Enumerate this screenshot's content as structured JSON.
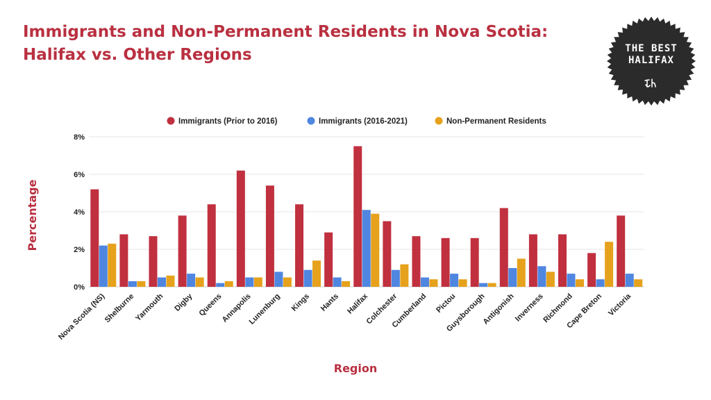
{
  "header": {
    "title_line1": "Immigrants and Non-Permanent Residents in Nova Scotia:",
    "title_line2": "Halifax vs. Other Regions"
  },
  "logo": {
    "line1": "THE BEST",
    "line2": "HALIFAX",
    "color": "#2b2b2b"
  },
  "chart_data": {
    "type": "bar",
    "title": "Immigrants and Non-Permanent Residents in Nova Scotia: Halifax vs. Other Regions",
    "xlabel": "Region",
    "ylabel": "Percentage",
    "ylim": [
      0,
      8
    ],
    "yticks": [
      0,
      2,
      4,
      6,
      8
    ],
    "ytick_suffix": "%",
    "grid": true,
    "legend_position": "top",
    "categories": [
      "Nova Scotia (NS)",
      "Shelburne",
      "Yarmouth",
      "Digby",
      "Queens",
      "Annapolis",
      "Lunenburg",
      "Kings",
      "Hants",
      "Halifax",
      "Colchester",
      "Cumberland",
      "Pictou",
      "Guysborough",
      "Antigonish",
      "Inverness",
      "Richmond",
      "Cape Breton",
      "Victoria"
    ],
    "series": [
      {
        "name": "Immigrants (Prior to 2016)",
        "color": "#c0303f",
        "values": [
          5.2,
          2.8,
          2.7,
          3.8,
          4.4,
          6.2,
          5.4,
          4.4,
          2.9,
          7.5,
          3.5,
          2.7,
          2.6,
          2.6,
          4.2,
          2.8,
          2.8,
          1.8,
          3.8
        ]
      },
      {
        "name": "Immigrants (2016-2021)",
        "color": "#4f86e0",
        "values": [
          2.2,
          0.3,
          0.5,
          0.7,
          0.2,
          0.5,
          0.8,
          0.9,
          0.5,
          4.1,
          0.9,
          0.5,
          0.7,
          0.2,
          1.0,
          1.1,
          0.7,
          0.4,
          0.7
        ]
      },
      {
        "name": "Non-Permanent Residents",
        "color": "#e6a21c",
        "values": [
          2.3,
          0.3,
          0.6,
          0.5,
          0.3,
          0.5,
          0.5,
          1.4,
          0.3,
          3.9,
          1.2,
          0.4,
          0.4,
          0.2,
          1.5,
          0.8,
          0.4,
          2.4,
          0.4
        ]
      }
    ]
  }
}
